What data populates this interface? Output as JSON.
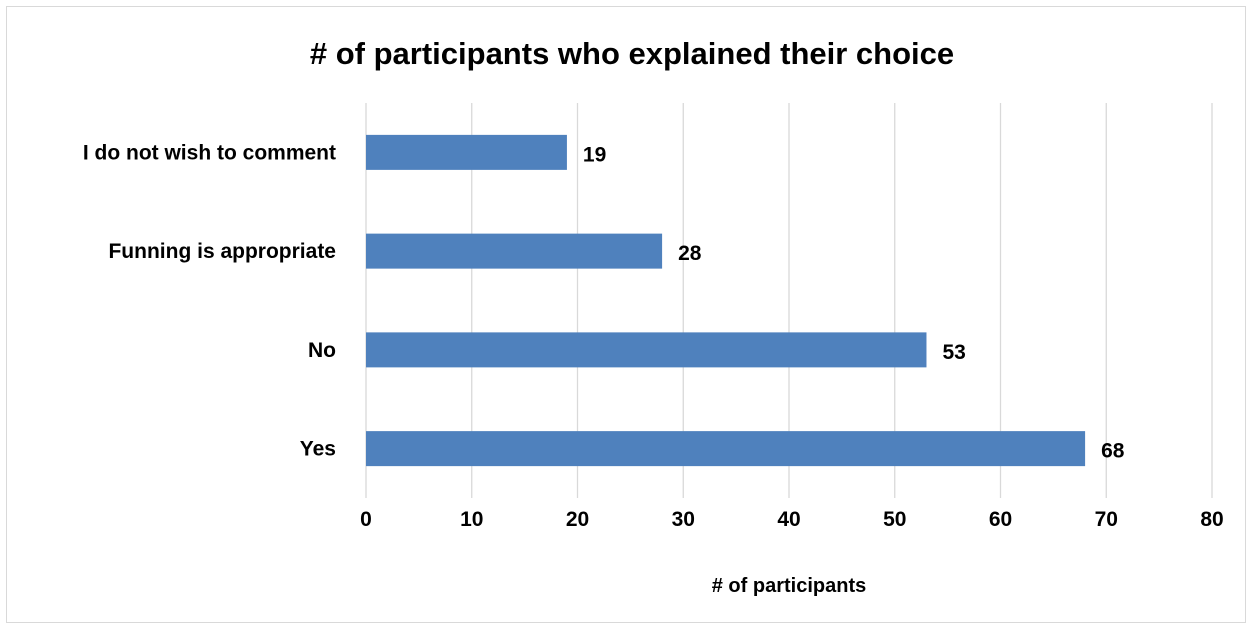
{
  "chart_data": {
    "type": "bar",
    "orientation": "horizontal",
    "title": "# of participants who explained their choice",
    "xlabel": "# of participants",
    "ylabel": "",
    "categories": [
      "I do not wish to comment",
      "Funning is appropriate",
      "No",
      "Yes"
    ],
    "values": [
      19,
      28,
      53,
      68
    ],
    "xlim": [
      0,
      80
    ],
    "ticks": [
      0,
      10,
      20,
      30,
      40,
      50,
      60,
      70,
      80
    ],
    "grid": true,
    "legend": "none",
    "bar_color": "#4f81bd"
  }
}
